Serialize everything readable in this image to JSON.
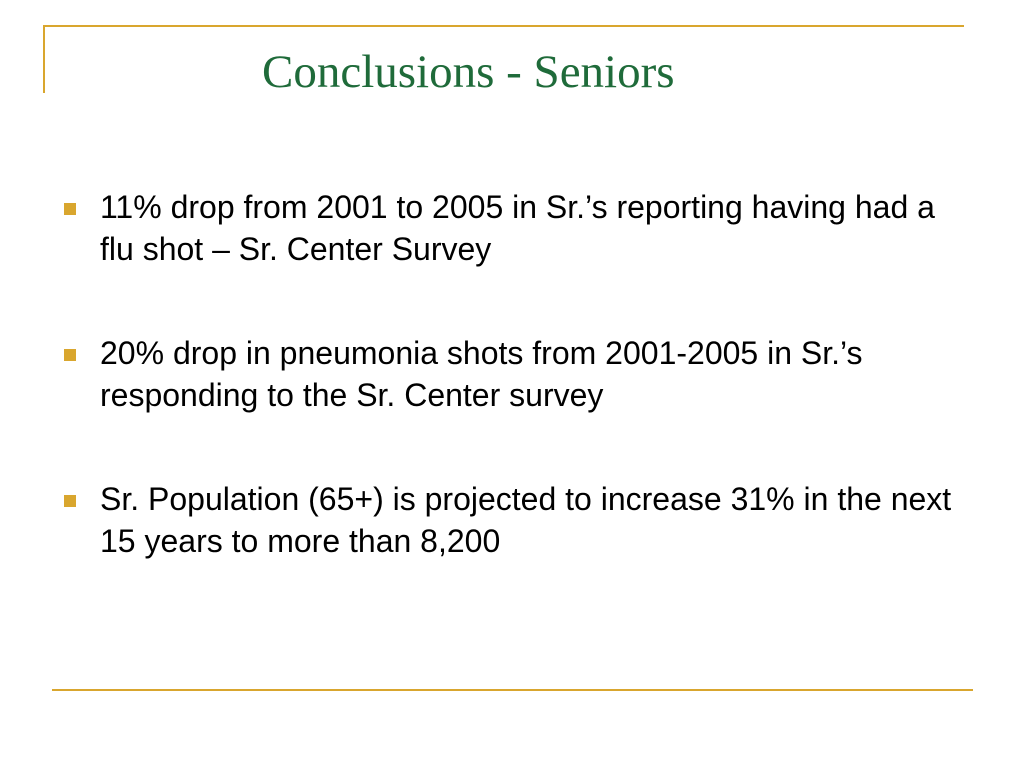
{
  "slide": {
    "title": "Conclusions - Seniors",
    "bullets": [
      {
        "text": "11% drop from 2001 to 2005 in Sr.’s reporting having had a flu shot – Sr. Center Survey"
      },
      {
        "text": "20% drop in pneumonia shots from 2001-2005 in Sr.’s responding to the Sr. Center survey"
      },
      {
        "text": "Sr. Population (65+) is projected to increase 31% in the next 15 years to more than 8,200"
      }
    ]
  },
  "colors": {
    "title": "#1f6b3a",
    "accent": "#d9a62e",
    "text": "#000000",
    "background": "#ffffff"
  }
}
